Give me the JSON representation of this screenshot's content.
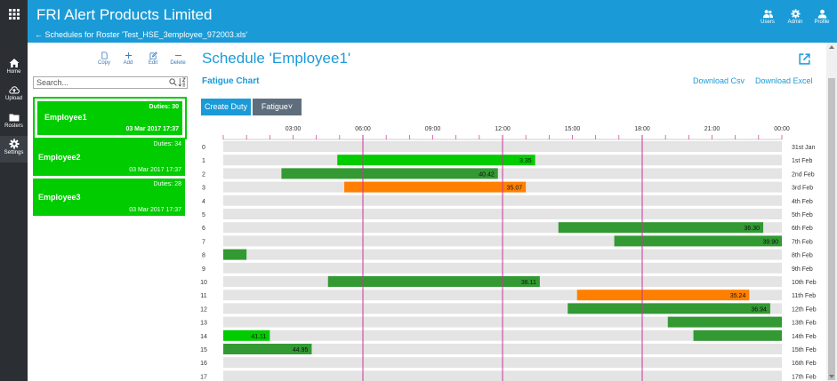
{
  "app": {
    "title": "FRI Alert Products Limited"
  },
  "breadcrumb": {
    "text": "← Schedules for Roster 'Test_HSE_3employee_972003.xls'"
  },
  "nav": [
    {
      "label": "Home",
      "icon": "home-icon"
    },
    {
      "label": "Upload",
      "icon": "upload-icon"
    },
    {
      "label": "Rosters",
      "icon": "rosters-icon"
    },
    {
      "label": "Settings",
      "icon": "settings-icon"
    }
  ],
  "top_actions": [
    {
      "label": "Users",
      "icon": "users-icon"
    },
    {
      "label": "Admin",
      "icon": "admin-icon"
    },
    {
      "label": "Profile",
      "icon": "profile-icon"
    }
  ],
  "toolbar": {
    "copy": "Copy",
    "add": "Add",
    "edit": "Edit",
    "delete": "Delete"
  },
  "search": {
    "placeholder": "Search...",
    "value": ""
  },
  "employees": [
    {
      "name": "Employee1",
      "duties": "Duties: 30",
      "date": "03 Mar 2017 17:37",
      "selected": true
    },
    {
      "name": "Employee2",
      "duties": "Duties: 34",
      "date": "03 Mar 2017 17:37",
      "selected": false
    },
    {
      "name": "Employee3",
      "duties": "Duties: 28",
      "date": "03 Mar 2017 17:37",
      "selected": false
    }
  ],
  "main": {
    "title": "Schedule 'Employee1'",
    "subtitle": "Fatigue Chart",
    "download_csv": "Download Csv",
    "download_excel": "Download Excel",
    "create_duty": "Create Duty",
    "fatigue_select": "Fatigue"
  },
  "colors": {
    "accent": "#1a9bd7",
    "green_bright": "#00cc00",
    "green_dark": "#339933",
    "orange": "#ff8000",
    "marker": "#cc3399"
  },
  "chart_data": {
    "type": "gantt",
    "time_ticks": [
      "03:00",
      "06:00",
      "09:00",
      "12:00",
      "15:00",
      "18:00",
      "21:00",
      "00:00"
    ],
    "x_range_hours": [
      0,
      24
    ],
    "marker_lines_hours": [
      6,
      12,
      18
    ],
    "rows": [
      {
        "index": "0",
        "date": "31st Jan"
      },
      {
        "index": "1",
        "date": "1st Feb"
      },
      {
        "index": "2",
        "date": "2nd Feb"
      },
      {
        "index": "3",
        "date": "3rd Feb"
      },
      {
        "index": "4",
        "date": "4th Feb"
      },
      {
        "index": "5",
        "date": "5th Feb"
      },
      {
        "index": "6",
        "date": "6th Feb"
      },
      {
        "index": "7",
        "date": "7th Feb"
      },
      {
        "index": "8",
        "date": "8th Feb"
      },
      {
        "index": "9",
        "date": "9th Feb"
      },
      {
        "index": "10",
        "date": "10th Feb"
      },
      {
        "index": "11",
        "date": "11th Feb"
      },
      {
        "index": "12",
        "date": "12th Feb"
      },
      {
        "index": "13",
        "date": "13th Feb"
      },
      {
        "index": "14",
        "date": "14th Feb"
      },
      {
        "index": "15",
        "date": "15th Feb"
      },
      {
        "index": "16",
        "date": "16th Feb"
      },
      {
        "index": "17",
        "date": "17th Feb"
      }
    ],
    "duties": [
      {
        "row": 1,
        "start": 4.9,
        "end": 13.4,
        "label": "3.35",
        "color": "bright"
      },
      {
        "row": 2,
        "start": 2.5,
        "end": 11.8,
        "label": "40.42",
        "color": "dark"
      },
      {
        "row": 3,
        "start": 5.2,
        "end": 13.0,
        "label": "35.07",
        "color": "orange"
      },
      {
        "row": 6,
        "start": 14.4,
        "end": 23.2,
        "label": "36.30",
        "color": "dark"
      },
      {
        "row": 7,
        "start": 16.8,
        "end": 24.0,
        "label": "39.90",
        "color": "dark"
      },
      {
        "row": 8,
        "start": 0.0,
        "end": 1.0,
        "label": "",
        "color": "dark"
      },
      {
        "row": 10,
        "start": 4.5,
        "end": 13.6,
        "label": "36.11",
        "color": "dark"
      },
      {
        "row": 11,
        "start": 15.2,
        "end": 22.6,
        "label": "35.24",
        "color": "orange"
      },
      {
        "row": 12,
        "start": 14.8,
        "end": 23.5,
        "label": "36.94",
        "color": "dark"
      },
      {
        "row": 13,
        "start": 19.1,
        "end": 24.0,
        "label": "",
        "color": "dark"
      },
      {
        "row": 14,
        "start": 0.0,
        "end": 2.0,
        "label": "41.11",
        "color": "bright"
      },
      {
        "row": 14,
        "start": 20.2,
        "end": 24.0,
        "label": "",
        "color": "dark"
      },
      {
        "row": 15,
        "start": 0.0,
        "end": 3.8,
        "label": "44.95",
        "color": "dark"
      }
    ]
  }
}
